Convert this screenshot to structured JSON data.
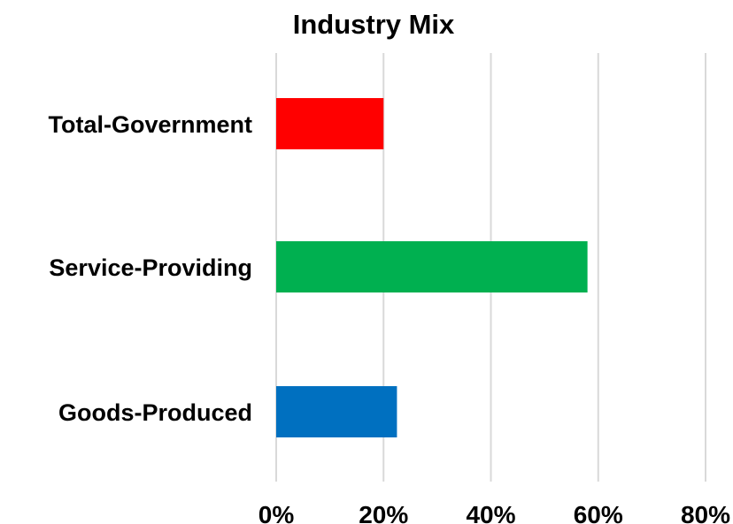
{
  "chart_data": {
    "type": "bar",
    "orientation": "horizontal",
    "title": "Industry Mix",
    "categories": [
      "Total-Government",
      "Service-Providing",
      "Goods-Produced"
    ],
    "values": [
      0.2,
      0.58,
      0.225
    ],
    "colors": [
      "#ff0000",
      "#00b050",
      "#0070c0"
    ],
    "xlim": [
      0,
      0.8
    ],
    "x_ticks": [
      0,
      0.2,
      0.4,
      0.6,
      0.8
    ],
    "x_tick_labels": [
      "0%",
      "20%",
      "40%",
      "60%",
      "80%"
    ],
    "grid": true,
    "legend": "none"
  }
}
